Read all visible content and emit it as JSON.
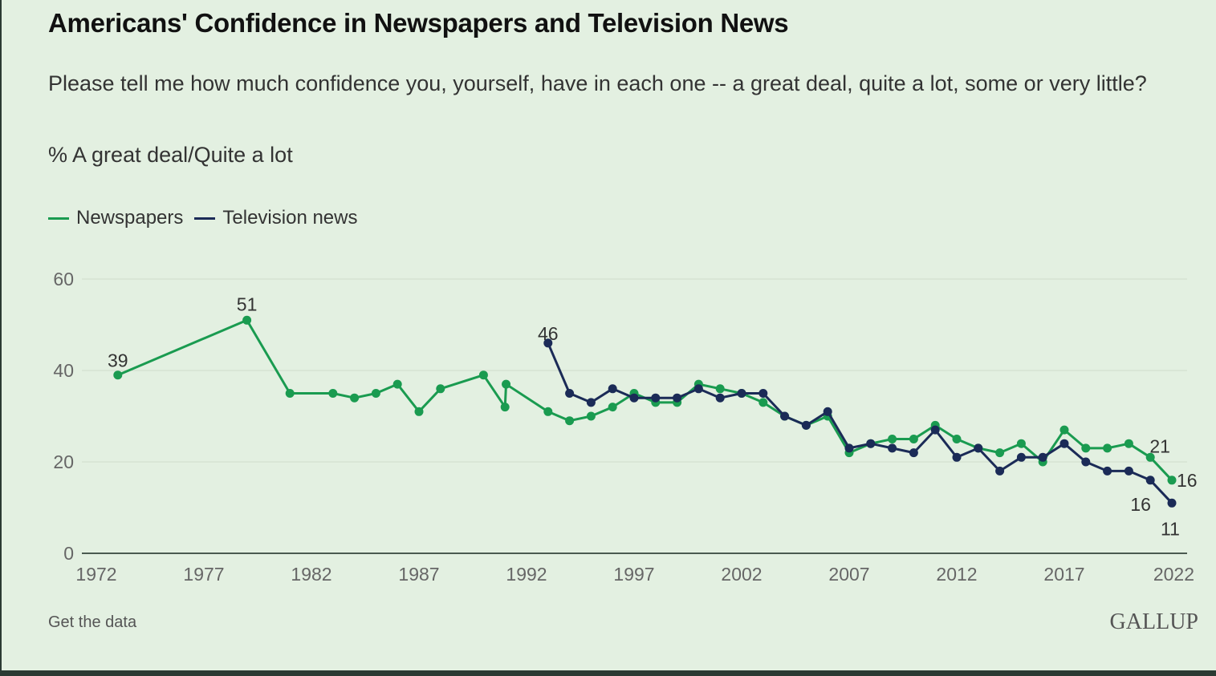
{
  "header": {
    "title": "Americans' Confidence in Newspapers and Television News",
    "subtitle": "Please tell me how much confidence you, yourself, have in each one -- a great deal, quite a lot, some or very little?",
    "unit": "% A great deal/Quite a lot"
  },
  "legend": [
    {
      "label": "Newspapers",
      "color": "#1a9b50"
    },
    {
      "label": "Television news",
      "color": "#1b2b57"
    }
  ],
  "footer": {
    "link": "Get the data",
    "brand": "GALLUP"
  },
  "chart_data": {
    "type": "line",
    "title": "Americans' Confidence in Newspapers and Television News",
    "xlabel": "",
    "ylabel": "% A great deal/Quite a lot",
    "xlim": [
      1972,
      2022
    ],
    "ylim": [
      0,
      60
    ],
    "x_ticks": [
      1972,
      1977,
      1982,
      1987,
      1992,
      1997,
      2002,
      2007,
      2012,
      2017,
      2022
    ],
    "y_ticks": [
      0,
      20,
      40,
      60
    ],
    "grid": true,
    "legend_position": "top-left",
    "series": [
      {
        "name": "Newspapers",
        "color": "#1a9b50",
        "x": [
          1973,
          1979,
          1981,
          1983,
          1984,
          1985,
          1986,
          1987,
          1988,
          1990,
          1991,
          1991.05,
          1993,
          1994,
          1995,
          1996,
          1997,
          1998,
          1999,
          2000,
          2001,
          2002,
          2003,
          2004,
          2005,
          2006,
          2007,
          2008,
          2009,
          2010,
          2011,
          2012,
          2013,
          2014,
          2015,
          2016,
          2017,
          2018,
          2019,
          2020,
          2021,
          2022
        ],
        "values": [
          39,
          51,
          35,
          35,
          34,
          35,
          37,
          31,
          36,
          39,
          32,
          37,
          31,
          29,
          30,
          32,
          35,
          33,
          33,
          37,
          36,
          35,
          33,
          30,
          28,
          30,
          22,
          24,
          25,
          25,
          28,
          25,
          23,
          22,
          24,
          20,
          27,
          23,
          23,
          24,
          21,
          16
        ]
      },
      {
        "name": "Television news",
        "color": "#1b2b57",
        "x": [
          1993,
          1994,
          1995,
          1996,
          1997,
          1998,
          1999,
          2000,
          2001,
          2002,
          2003,
          2004,
          2005,
          2006,
          2007,
          2008,
          2009,
          2010,
          2011,
          2012,
          2013,
          2014,
          2015,
          2016,
          2017,
          2018,
          2019,
          2020,
          2021,
          2022
        ],
        "values": [
          46,
          35,
          33,
          36,
          34,
          34,
          34,
          36,
          34,
          35,
          35,
          30,
          28,
          31,
          23,
          24,
          23,
          22,
          27,
          21,
          23,
          18,
          21,
          21,
          24,
          20,
          18,
          18,
          16,
          11
        ]
      }
    ],
    "annotations": [
      {
        "series": "Newspapers",
        "x": 1973,
        "text": "39"
      },
      {
        "series": "Newspapers",
        "x": 1979,
        "text": "51"
      },
      {
        "series": "Television news",
        "x": 1993,
        "text": "46"
      },
      {
        "series": "Newspapers",
        "x": 2021,
        "text": "21"
      },
      {
        "series": "Newspapers",
        "x": 2022,
        "text": "16"
      },
      {
        "series": "Television news",
        "x": 2021,
        "text": "16"
      },
      {
        "series": "Television news",
        "x": 2022,
        "text": "11"
      }
    ]
  }
}
